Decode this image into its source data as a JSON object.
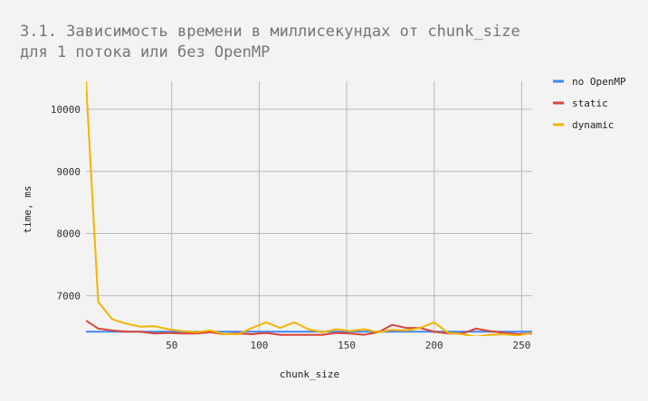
{
  "chart_data": {
    "type": "line",
    "title_lines": [
      "3.1. Зависимость времени в миллисекундах от chunk_size",
      "для 1 потока или без OpenMP"
    ],
    "xlabel": "chunk_size",
    "ylabel": "time, ms",
    "xlim": [
      1,
      256
    ],
    "ylim": [
      6380,
      10450
    ],
    "x_ticks": [
      50,
      100,
      150,
      200,
      250
    ],
    "y_ticks": [
      7000,
      8000,
      9000,
      10000
    ],
    "grid": true,
    "legend_position": "right",
    "x": [
      1,
      8,
      16,
      24,
      32,
      40,
      48,
      56,
      64,
      72,
      80,
      88,
      96,
      104,
      112,
      120,
      128,
      136,
      144,
      152,
      160,
      168,
      176,
      184,
      192,
      200,
      208,
      216,
      224,
      232,
      240,
      248,
      256
    ],
    "series": [
      {
        "name": "no OpenMP",
        "color": "#4285f4",
        "values": [
          6420,
          6420,
          6420,
          6420,
          6420,
          6420,
          6420,
          6420,
          6420,
          6420,
          6420,
          6420,
          6420,
          6420,
          6420,
          6420,
          6420,
          6420,
          6420,
          6420,
          6420,
          6420,
          6420,
          6420,
          6420,
          6420,
          6420,
          6420,
          6420,
          6420,
          6420,
          6420,
          6420
        ]
      },
      {
        "name": "static",
        "color": "#db4437",
        "values": [
          6600,
          6470,
          6440,
          6420,
          6420,
          6390,
          6400,
          6390,
          6390,
          6410,
          6380,
          6390,
          6380,
          6400,
          6370,
          6370,
          6370,
          6370,
          6400,
          6390,
          6370,
          6410,
          6530,
          6480,
          6480,
          6420,
          6390,
          6390,
          6470,
          6430,
          6400,
          6380,
          6390
        ]
      },
      {
        "name": "dynamic",
        "color": "#f4b400",
        "values": [
          10450,
          6900,
          6620,
          6550,
          6500,
          6510,
          6460,
          6430,
          6410,
          6440,
          6380,
          6380,
          6480,
          6570,
          6480,
          6570,
          6460,
          6410,
          6460,
          6430,
          6460,
          6410,
          6450,
          6440,
          6480,
          6570,
          6400,
          6380,
          6340,
          6370,
          6380,
          6360,
          6400
        ]
      }
    ]
  }
}
